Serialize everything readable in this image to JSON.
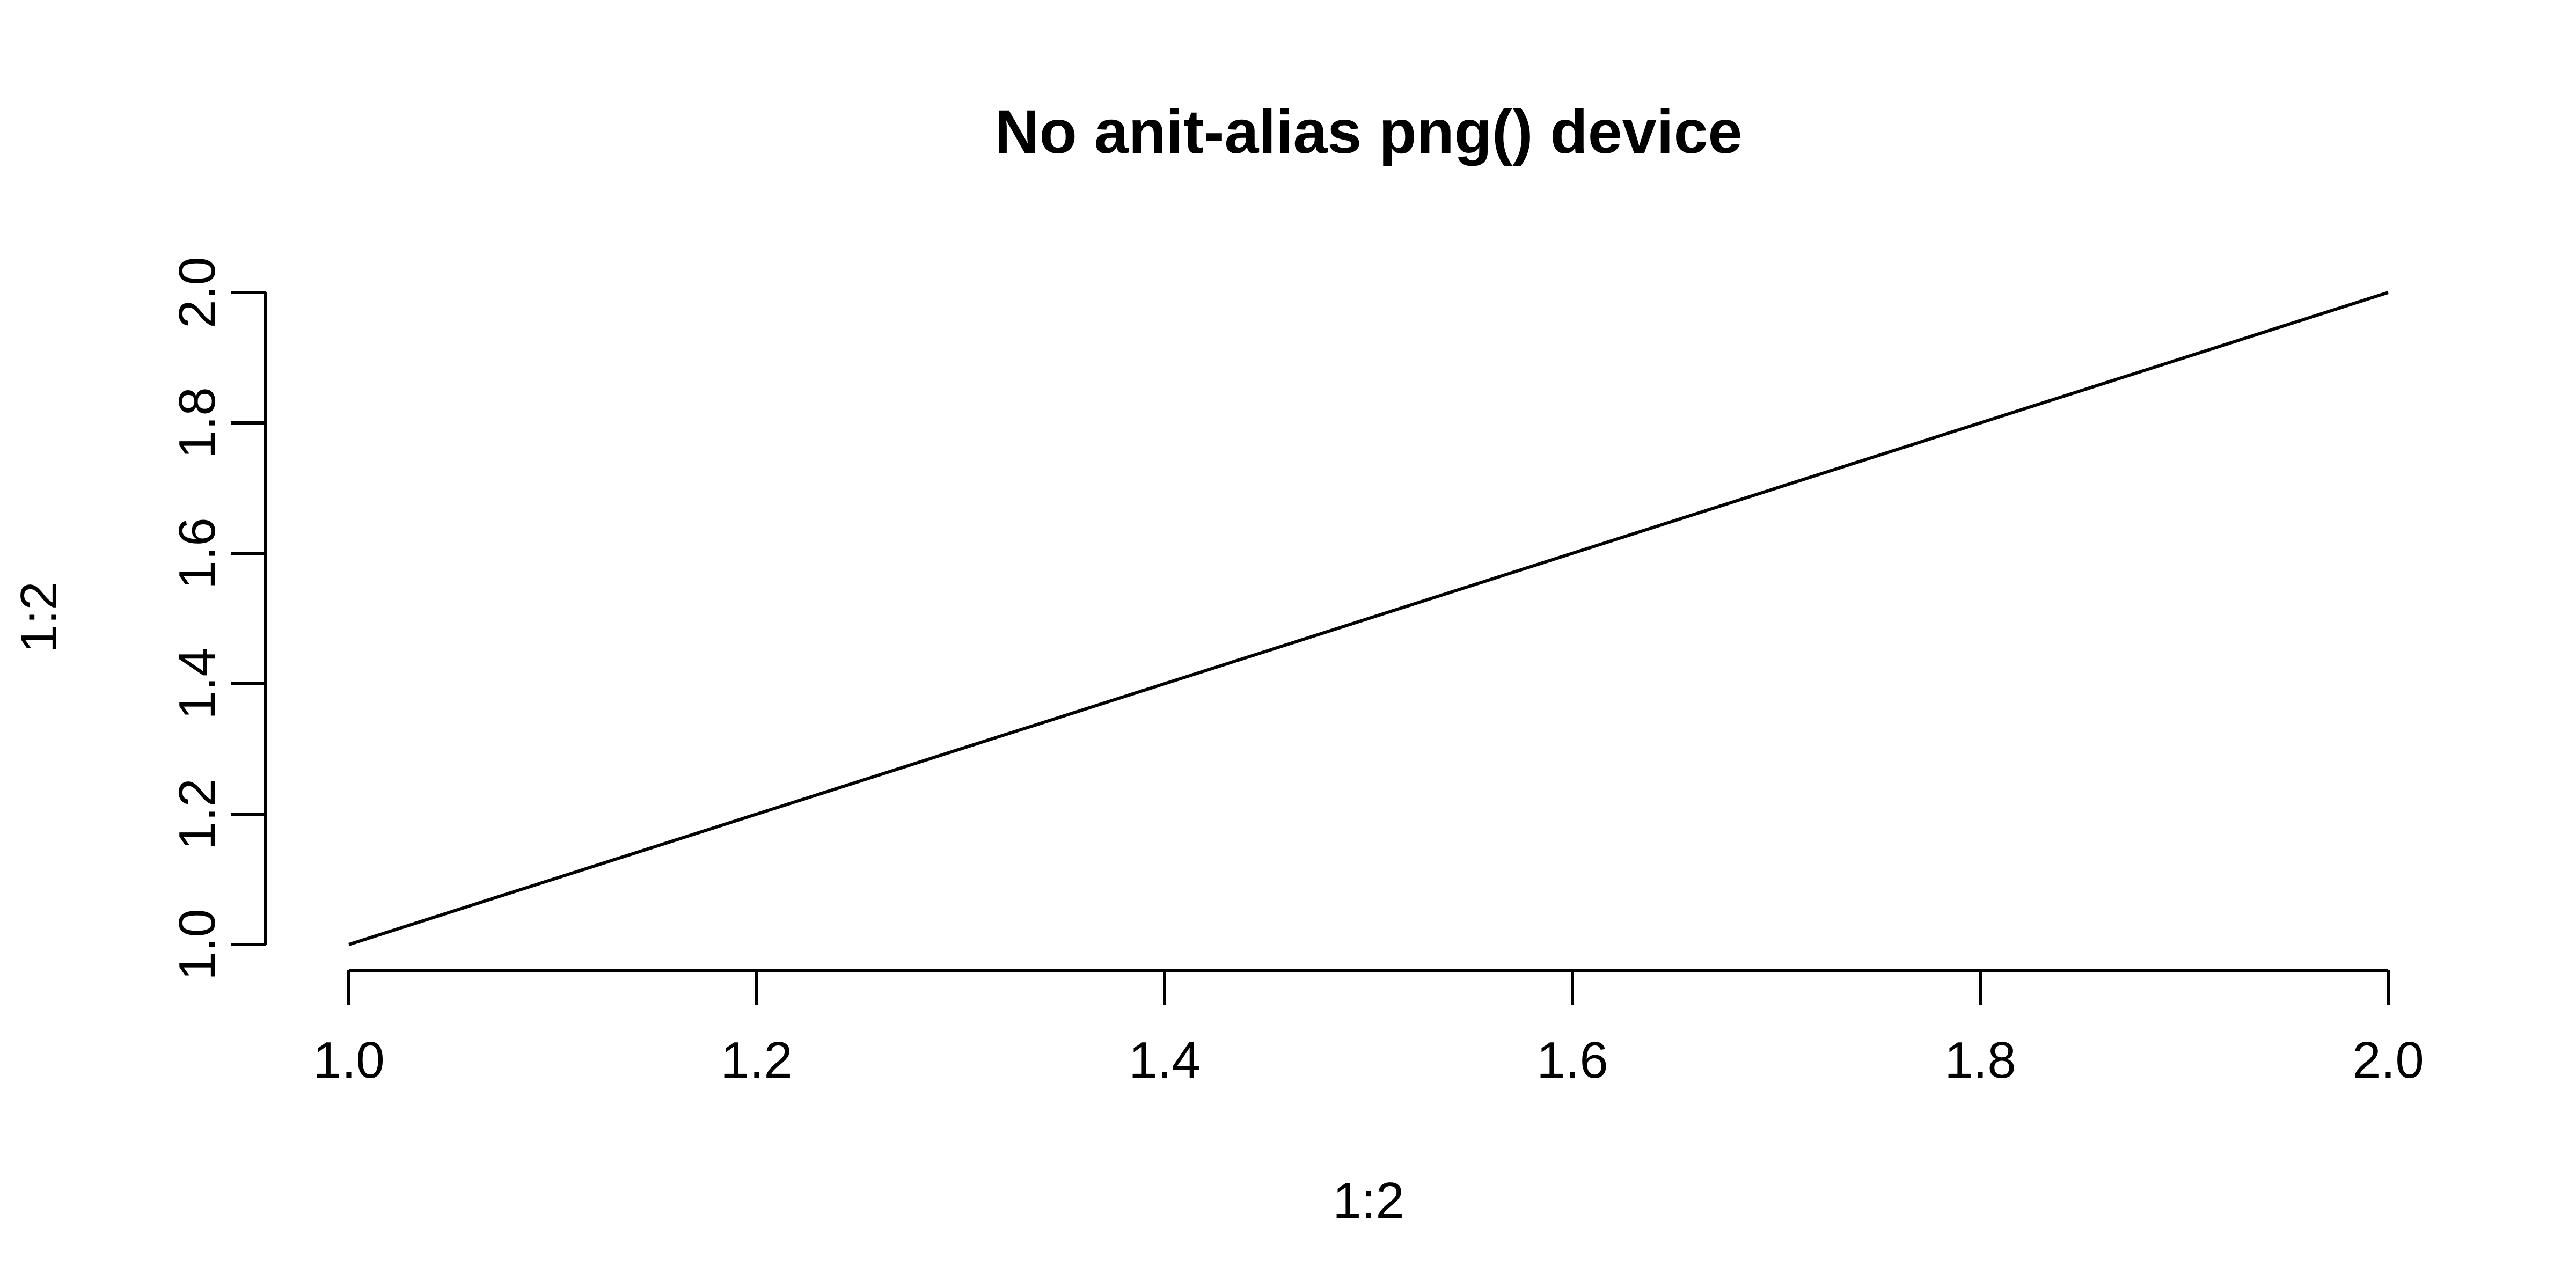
{
  "chart_data": {
    "type": "line",
    "title": "No anit-alias png() device",
    "xlabel": "1:2",
    "ylabel": "1:2",
    "xlim": [
      1.0,
      2.0
    ],
    "ylim": [
      1.0,
      2.0
    ],
    "x_ticks": [
      "1.0",
      "1.2",
      "1.4",
      "1.6",
      "1.8",
      "2.0"
    ],
    "y_ticks": [
      "1.0",
      "1.2",
      "1.4",
      "1.6",
      "1.8",
      "2.0"
    ],
    "grid": false,
    "series": [
      {
        "x": [
          1,
          2
        ],
        "y": [
          1,
          2
        ],
        "color": "#000000"
      }
    ]
  }
}
